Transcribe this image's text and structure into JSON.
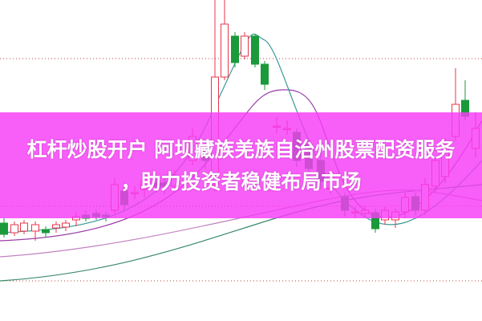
{
  "banner": {
    "line1": "杠杆炒股开户 阿坝藏族羌族自治州股票配资服务",
    "line2": "，助力投资者稳健布局市场"
  },
  "colors": {
    "up": "#e8364a",
    "down": "#1a9a3a",
    "banner": "#f63cf6",
    "ma_purple": "#9b3fa8",
    "ma_teal": "#3a9a9a",
    "ma_green": "#3a8a6a"
  }
}
